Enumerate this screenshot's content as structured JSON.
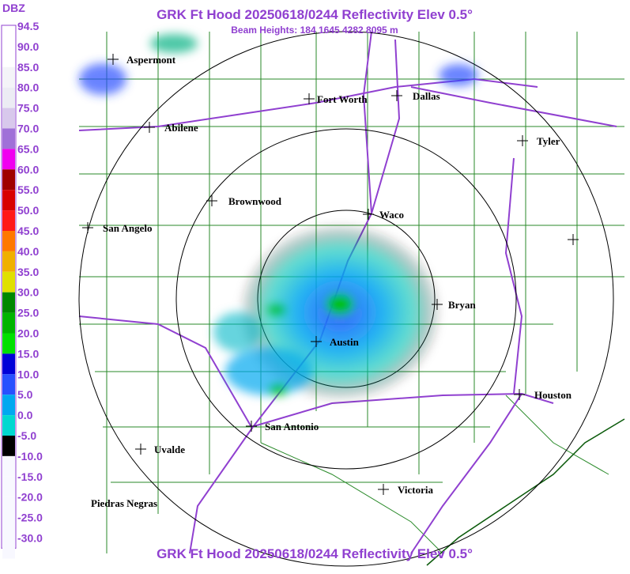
{
  "header": {
    "title": "GRK Ft Hood 20250618/0244 Reflectivity Elev 0.5°",
    "subtitle": "Beam Heights: 184 1645 4282 8095 m"
  },
  "legend": {
    "title": "DBZ",
    "labels": [
      "94.5",
      "90.0",
      "85.0",
      "80.0",
      "75.0",
      "70.0",
      "65.0",
      "60.0",
      "55.0",
      "50.0",
      "45.0",
      "40.0",
      "35.0",
      "30.0",
      "25.0",
      "20.0",
      "15.0",
      "10.0",
      "5.0",
      "0.0",
      "-5.0",
      "-10.0",
      "-15.0",
      "-20.0",
      "-25.0",
      "-30.0"
    ],
    "colors": [
      "#ffffff",
      "#ffffff",
      "#f4f4f8",
      "#ececf4",
      "#d8c8ec",
      "#a070d8",
      "#f000f0",
      "#a00000",
      "#d80000",
      "#ff1818",
      "#ff7800",
      "#f0b000",
      "#e0e000",
      "#008800",
      "#00b400",
      "#00e000",
      "#0000d8",
      "#2850ff",
      "#00a8f0",
      "#00d8d0",
      "#000000",
      "#f8f8ff",
      "#f8f8ff",
      "#f8f8ff",
      "#f8f8ff",
      "#f8f8ff"
    ]
  },
  "places": [
    "Aspermont",
    "Fort Worth",
    "Dallas",
    "Abilene",
    "Tyler",
    "Brownwood",
    "Waco",
    "San Angelo",
    "Bryan",
    "Austin",
    "Houston",
    "San Antonio",
    "Uvalde",
    "Victoria",
    "Piedras Negras"
  ]
}
